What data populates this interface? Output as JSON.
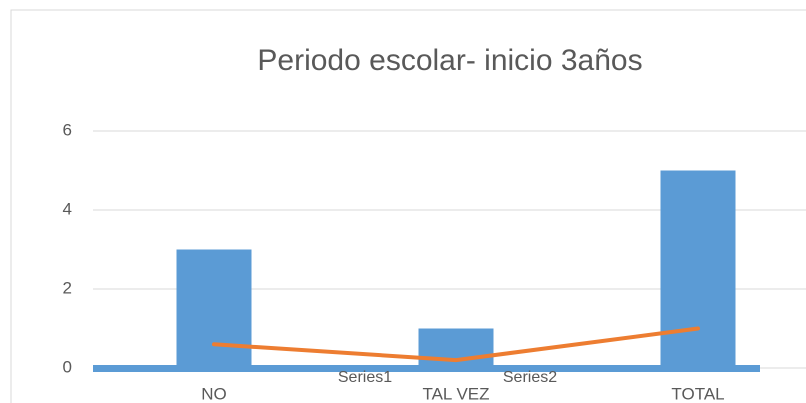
{
  "chart_data": {
    "type": "bar",
    "title": "Periodo escolar- inicio 3años",
    "categories": [
      "NO",
      "TAL VEZ",
      "TOTAL"
    ],
    "series": [
      {
        "name": "Series1",
        "color": "#5b9bd5",
        "type": "bar",
        "values": [
          3,
          1,
          5
        ]
      },
      {
        "name": "Series2",
        "color": "#ed7d31",
        "type": "line",
        "values": [
          0.6,
          0.2,
          1
        ]
      }
    ],
    "ylim": [
      0,
      6
    ],
    "yticks": [
      0,
      2,
      4,
      6
    ],
    "grid": true
  }
}
